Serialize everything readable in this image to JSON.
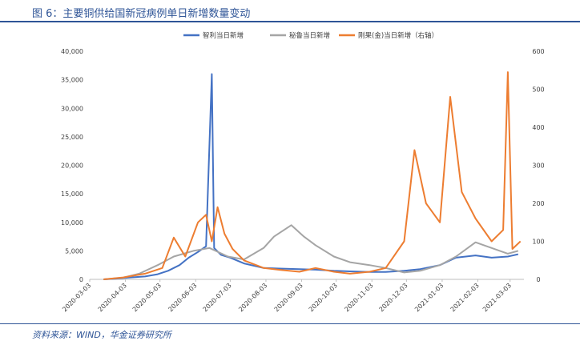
{
  "figure": {
    "title": "图 6：主要铜供给国新冠病例单日新增数量变动",
    "source": "资料来源：WIND，华金证券研究所"
  },
  "chart_data": {
    "type": "line",
    "x_ticks": [
      "2020-03-03",
      "2020-04-03",
      "2020-05-03",
      "2020-06-03",
      "2020-07-03",
      "2020-08-03",
      "2020-09-03",
      "2020-10-03",
      "2020-11-03",
      "2020-12-03",
      "2021-01-03",
      "2021-02-03",
      "2021-03-03"
    ],
    "x_range": [
      "2020-03-03",
      "2021-03-15"
    ],
    "y_left": {
      "range": [
        0,
        40000
      ],
      "ticks": [
        "0",
        "5,000",
        "10,000",
        "15,000",
        "20,000",
        "25,000",
        "30,000",
        "35,000",
        "40,000"
      ]
    },
    "y_right": {
      "range": [
        0,
        600
      ],
      "ticks": [
        "0",
        "100",
        "200",
        "300",
        "400",
        "500",
        "600"
      ]
    },
    "grid": false,
    "legend_position": "top",
    "series": [
      {
        "name": "智利当日新增",
        "axis": "left",
        "color": "#4472c4",
        "points": [
          [
            "2020-03-15",
            0
          ],
          [
            "2020-03-25",
            100
          ],
          [
            "2020-04-05",
            300
          ],
          [
            "2020-04-20",
            500
          ],
          [
            "2020-05-01",
            900
          ],
          [
            "2020-05-10",
            1500
          ],
          [
            "2020-05-20",
            2500
          ],
          [
            "2020-05-28",
            3800
          ],
          [
            "2020-06-05",
            4800
          ],
          [
            "2020-06-12",
            5800
          ],
          [
            "2020-06-17",
            36000
          ],
          [
            "2020-06-19",
            5500
          ],
          [
            "2020-06-25",
            4300
          ],
          [
            "2020-07-03",
            3800
          ],
          [
            "2020-07-15",
            2800
          ],
          [
            "2020-08-01",
            2000
          ],
          [
            "2020-08-15",
            1900
          ],
          [
            "2020-09-01",
            1800
          ],
          [
            "2020-09-15",
            1700
          ],
          [
            "2020-10-01",
            1500
          ],
          [
            "2020-10-15",
            1400
          ],
          [
            "2020-11-01",
            1300
          ],
          [
            "2020-11-15",
            1300
          ],
          [
            "2020-12-01",
            1500
          ],
          [
            "2020-12-15",
            1800
          ],
          [
            "2021-01-01",
            2500
          ],
          [
            "2021-01-15",
            3800
          ],
          [
            "2021-02-01",
            4200
          ],
          [
            "2021-02-15",
            3800
          ],
          [
            "2021-03-01",
            4000
          ],
          [
            "2021-03-10",
            4400
          ]
        ]
      },
      {
        "name": "秘鲁当日新增",
        "axis": "left",
        "color": "#a5a5a5",
        "points": [
          [
            "2020-03-15",
            0
          ],
          [
            "2020-04-01",
            300
          ],
          [
            "2020-04-15",
            1000
          ],
          [
            "2020-05-01",
            2500
          ],
          [
            "2020-05-15",
            4000
          ],
          [
            "2020-06-01",
            5000
          ],
          [
            "2020-06-15",
            5500
          ],
          [
            "2020-07-01",
            4000
          ],
          [
            "2020-07-15",
            3500
          ],
          [
            "2020-08-01",
            5500
          ],
          [
            "2020-08-10",
            7500
          ],
          [
            "2020-08-25",
            9500
          ],
          [
            "2020-09-05",
            7500
          ],
          [
            "2020-09-15",
            6000
          ],
          [
            "2020-10-01",
            4000
          ],
          [
            "2020-10-15",
            3000
          ],
          [
            "2020-11-01",
            2500
          ],
          [
            "2020-11-15",
            2000
          ],
          [
            "2020-12-01",
            1200
          ],
          [
            "2020-12-15",
            1500
          ],
          [
            "2021-01-01",
            2500
          ],
          [
            "2021-01-15",
            4000
          ],
          [
            "2021-02-01",
            6500
          ],
          [
            "2021-02-15",
            5500
          ],
          [
            "2021-03-01",
            4500
          ],
          [
            "2021-03-10",
            5000
          ]
        ]
      },
      {
        "name": "刚果(金)当日新增（右轴）",
        "axis": "right",
        "color": "#ed7d31",
        "points": [
          [
            "2020-03-15",
            0
          ],
          [
            "2020-04-01",
            5
          ],
          [
            "2020-04-20",
            15
          ],
          [
            "2020-05-05",
            30
          ],
          [
            "2020-05-15",
            110
          ],
          [
            "2020-05-25",
            60
          ],
          [
            "2020-06-05",
            150
          ],
          [
            "2020-06-12",
            170
          ],
          [
            "2020-06-17",
            100
          ],
          [
            "2020-06-22",
            190
          ],
          [
            "2020-06-28",
            120
          ],
          [
            "2020-07-05",
            80
          ],
          [
            "2020-07-15",
            50
          ],
          [
            "2020-08-01",
            30
          ],
          [
            "2020-08-15",
            25
          ],
          [
            "2020-09-01",
            20
          ],
          [
            "2020-09-15",
            30
          ],
          [
            "2020-10-01",
            20
          ],
          [
            "2020-10-15",
            15
          ],
          [
            "2020-11-01",
            20
          ],
          [
            "2020-11-15",
            30
          ],
          [
            "2020-12-01",
            100
          ],
          [
            "2020-12-10",
            340
          ],
          [
            "2020-12-20",
            200
          ],
          [
            "2021-01-01",
            150
          ],
          [
            "2021-01-10",
            480
          ],
          [
            "2021-01-20",
            230
          ],
          [
            "2021-02-01",
            160
          ],
          [
            "2021-02-15",
            100
          ],
          [
            "2021-02-25",
            130
          ],
          [
            "2021-03-01",
            545
          ],
          [
            "2021-03-05",
            80
          ],
          [
            "2021-03-12",
            100
          ]
        ]
      }
    ]
  }
}
